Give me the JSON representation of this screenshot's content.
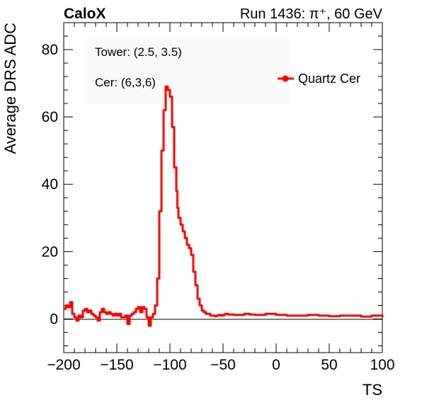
{
  "header": {
    "experiment": "CaloX",
    "run_info": "Run 1436: π⁺, 60 GeV"
  },
  "annotations": {
    "tower": "Tower: (2.5, 3.5)",
    "cer": "Cer: (6,3,6)"
  },
  "chart_data": {
    "type": "line",
    "xlabel": "TS",
    "ylabel": "Average DRS ADC",
    "xlim": [
      -200,
      100
    ],
    "ylim": [
      -10,
      88
    ],
    "x_ticks": [
      -200,
      -150,
      -100,
      -50,
      0,
      50,
      100
    ],
    "x_tick_labels": [
      "−200",
      "−150",
      "−100",
      "−50",
      "0",
      "50",
      "100"
    ],
    "y_ticks": [
      0,
      20,
      40,
      60,
      80
    ],
    "y_tick_labels": [
      "0",
      "20",
      "40",
      "60",
      "80"
    ],
    "zero_line": true,
    "grid": false,
    "legend_position": "top-right",
    "series": [
      {
        "name": "Quartz Cer",
        "color": "#ff0000",
        "x": [
          -200,
          -198,
          -196,
          -194,
          -192,
          -190,
          -188,
          -186,
          -184,
          -182,
          -180,
          -178,
          -176,
          -174,
          -172,
          -170,
          -168,
          -166,
          -164,
          -162,
          -160,
          -158,
          -156,
          -154,
          -152,
          -150,
          -148,
          -146,
          -144,
          -142,
          -140,
          -138,
          -136,
          -134,
          -132,
          -130,
          -128,
          -126,
          -124,
          -122,
          -120,
          -118,
          -116,
          -114,
          -112,
          -110,
          -108,
          -106,
          -104,
          -102,
          -100,
          -98,
          -96,
          -94,
          -93,
          -92,
          -90,
          -88,
          -86,
          -84,
          -82,
          -80,
          -78,
          -76,
          -74,
          -72,
          -70,
          -68,
          -66,
          -64,
          -62,
          -60,
          -58,
          -56,
          -54,
          -52,
          -50,
          -48,
          -45,
          -40,
          -35,
          -30,
          -25,
          -20,
          -10,
          0,
          10,
          20,
          30,
          40,
          50,
          60,
          70,
          80,
          90,
          100
        ],
        "values": [
          3.0,
          4.0,
          3.5,
          5.0,
          1.5,
          0.5,
          -0.5,
          1.0,
          0.5,
          2.5,
          3.0,
          2.0,
          2.5,
          1.5,
          1.0,
          0.5,
          -0.5,
          2.0,
          3.0,
          2.0,
          1.5,
          2.0,
          1.5,
          1.0,
          1.5,
          1.0,
          1.5,
          0.5,
          0.5,
          1.0,
          -1.5,
          1.0,
          1.5,
          2.0,
          3.0,
          3.5,
          2.0,
          3.5,
          3.0,
          0.5,
          -2.0,
          0.5,
          1.5,
          4.0,
          12.0,
          32.0,
          50.0,
          62.0,
          69.0,
          68.0,
          66.0,
          57.0,
          45.0,
          38.0,
          33.0,
          30.0,
          28.0,
          26.0,
          24.0,
          22.0,
          21.0,
          19.0,
          14.0,
          10.0,
          6.0,
          4.0,
          2.5,
          2.0,
          1.5,
          1.5,
          1.0,
          1.0,
          0.8,
          1.0,
          1.2,
          1.0,
          1.2,
          1.5,
          1.3,
          1.2,
          1.2,
          1.5,
          1.3,
          1.2,
          1.5,
          1.2,
          1.0,
          1.0,
          1.2,
          1.0,
          0.8,
          1.0,
          1.0,
          0.7,
          1.0,
          0.5
        ]
      }
    ]
  }
}
